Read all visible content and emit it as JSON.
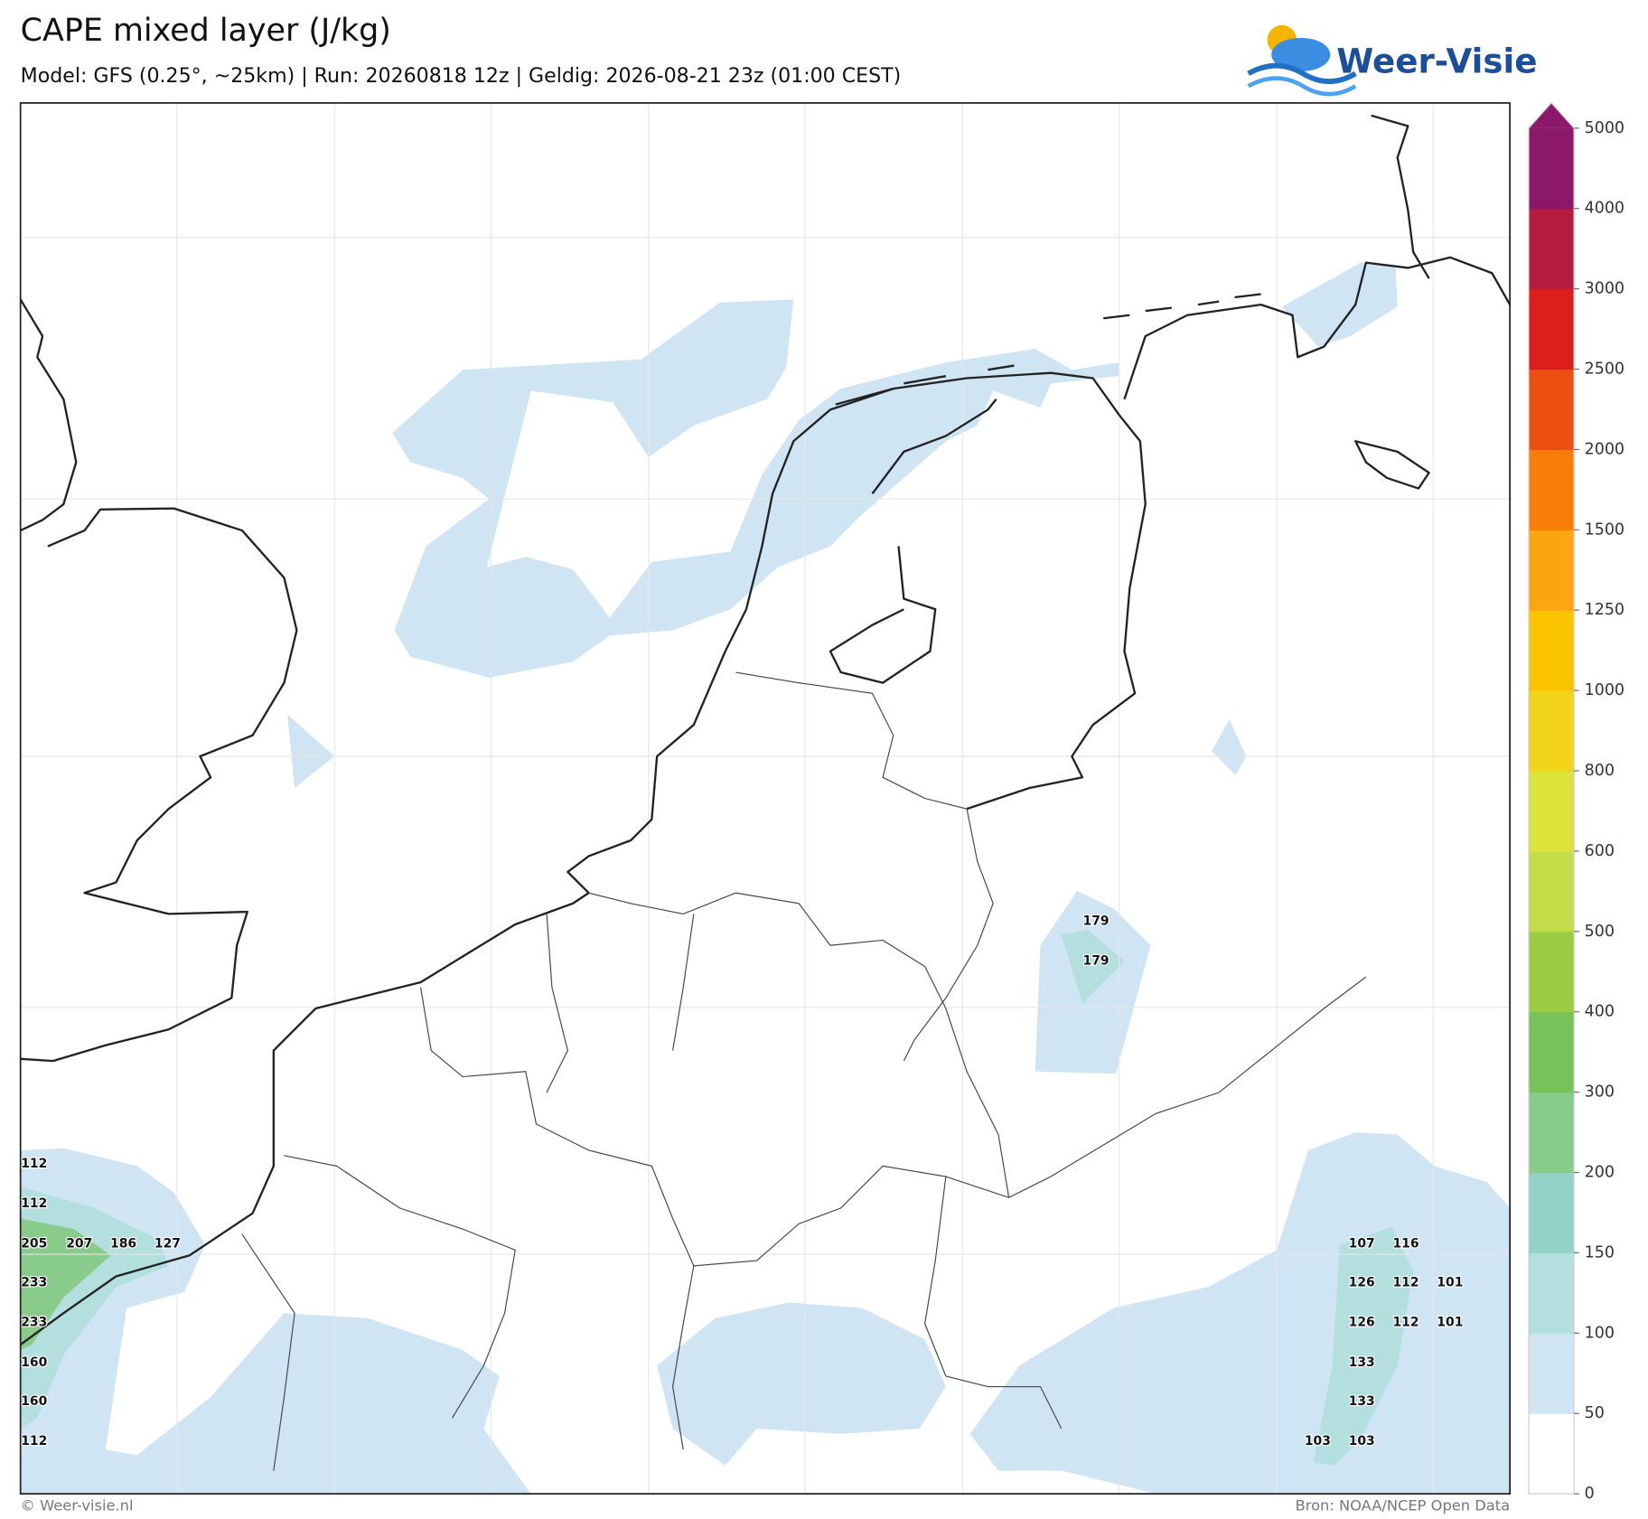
{
  "header": {
    "title": "CAPE mixed layer (J/kg)",
    "subtitle": "Model: GFS (0.25°, ~25km)  |  Run: 20260818 12z  |  Geldig: 2026-08-21 23z (01:00 CEST)",
    "logo": "Weer-Visie"
  },
  "colorbar": {
    "ticks": [
      0,
      50,
      100,
      150,
      200,
      300,
      400,
      500,
      600,
      800,
      1000,
      1250,
      1500,
      2000,
      2500,
      3000,
      4000,
      5000
    ],
    "colors": [
      "#ffffff",
      "#cfe5f4",
      "#b3dfdf",
      "#93d3c6",
      "#88cb8b",
      "#79c25a",
      "#9ccc42",
      "#c3dc47",
      "#dde33a",
      "#f1d419",
      "#fbc401",
      "#fba511",
      "#f87e0a",
      "#ec4e12",
      "#dd1f1b",
      "#b51d40",
      "#8c186c"
    ]
  },
  "map": {
    "labels": [
      179,
      179,
      112,
      112,
      205,
      207,
      186,
      127,
      233,
      233,
      160,
      160,
      112,
      107,
      116,
      126,
      112,
      101,
      126,
      112,
      101,
      133,
      133,
      103,
      103
    ]
  },
  "footer": {
    "copyright": "© Weer-visie.nl",
    "source": "Bron: NOAA/NCEP Open Data"
  }
}
